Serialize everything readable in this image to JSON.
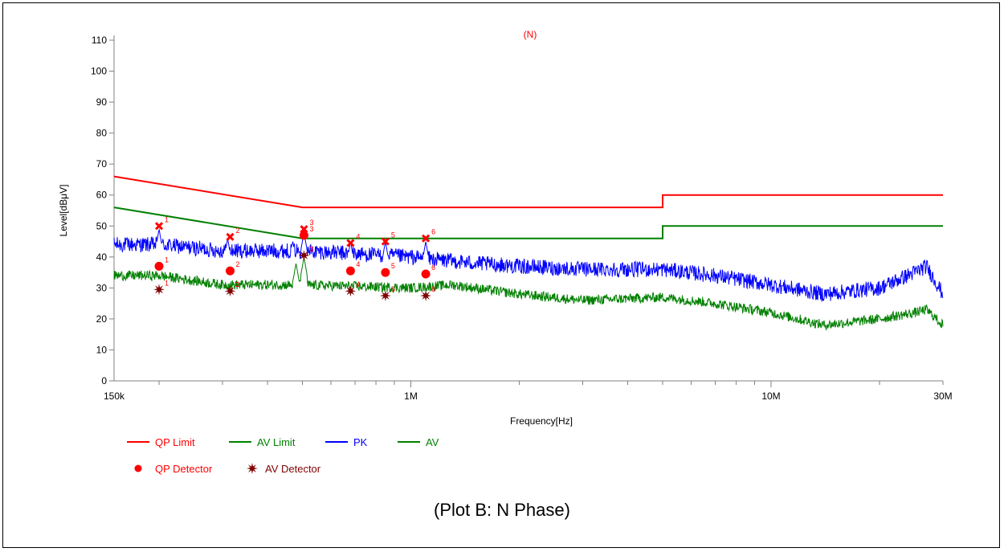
{
  "caption": "(Plot B: N Phase)",
  "colors": {
    "qp_limit": "#ff0000",
    "av_limit": "#008000",
    "pk": "#0000ff",
    "av": "#008000",
    "qp_detector": "#ff0000",
    "av_detector": "#800000",
    "peak_marker": "#ff0000",
    "marker_label": "#ff0000"
  },
  "chart_data": {
    "type": "line",
    "title": "(N)",
    "xlabel": "Frequency[Hz]",
    "ylabel": "Level[dBμV]",
    "xscale": "log",
    "xlim": [
      150000,
      30000000
    ],
    "ylim": [
      0,
      110
    ],
    "grid": false,
    "legend_position": "bottom-left",
    "x_ticks": [
      {
        "value": 150000,
        "label": "150k"
      },
      {
        "value": 1000000,
        "label": "1M"
      },
      {
        "value": 10000000,
        "label": "10M"
      },
      {
        "value": 30000000,
        "label": "30M"
      }
    ],
    "y_ticks": [
      0,
      10,
      20,
      30,
      40,
      50,
      60,
      70,
      80,
      90,
      100,
      110
    ],
    "series": [
      {
        "name": "QP Limit",
        "key": "qp_limit",
        "style": "line",
        "points": [
          [
            150000,
            66
          ],
          [
            500000,
            56
          ],
          [
            5000000,
            56
          ],
          [
            5000000,
            60
          ],
          [
            30000000,
            60
          ]
        ]
      },
      {
        "name": "AV Limit",
        "key": "av_limit",
        "style": "line",
        "points": [
          [
            150000,
            56
          ],
          [
            500000,
            46
          ],
          [
            5000000,
            46
          ],
          [
            5000000,
            50
          ],
          [
            30000000,
            50
          ]
        ]
      },
      {
        "name": "PK",
        "key": "pk",
        "style": "noisy",
        "envelope": [
          [
            150000,
            44
          ],
          [
            200000,
            44
          ],
          [
            300000,
            42
          ],
          [
            500000,
            42
          ],
          [
            1000000,
            40
          ],
          [
            1500000,
            38
          ],
          [
            2000000,
            37
          ],
          [
            3000000,
            36
          ],
          [
            5000000,
            36
          ],
          [
            7000000,
            34
          ],
          [
            10000000,
            31
          ],
          [
            14000000,
            28
          ],
          [
            20000000,
            30
          ],
          [
            25000000,
            35
          ],
          [
            27000000,
            37
          ],
          [
            30000000,
            28
          ]
        ],
        "spikes": [
          [
            200000,
            49
          ],
          [
            310000,
            46
          ],
          [
            470000,
            45
          ],
          [
            505000,
            48
          ],
          [
            680000,
            45
          ],
          [
            850000,
            45
          ],
          [
            1100000,
            45
          ]
        ],
        "noise": 2.5
      },
      {
        "name": "AV",
        "key": "av",
        "style": "noisy",
        "envelope": [
          [
            150000,
            34
          ],
          [
            200000,
            34
          ],
          [
            300000,
            31
          ],
          [
            500000,
            31
          ],
          [
            1000000,
            30
          ],
          [
            1300000,
            31
          ],
          [
            1500000,
            30
          ],
          [
            2000000,
            28
          ],
          [
            3000000,
            26
          ],
          [
            5000000,
            27
          ],
          [
            7000000,
            25
          ],
          [
            10000000,
            22
          ],
          [
            14000000,
            18
          ],
          [
            20000000,
            20
          ],
          [
            25000000,
            22
          ],
          [
            27000000,
            23
          ],
          [
            30000000,
            18
          ]
        ],
        "spikes": [
          [
            480000,
            38
          ],
          [
            505000,
            40
          ]
        ],
        "noise": 1.6
      },
      {
        "name": "QP Detector",
        "key": "qp_detector",
        "style": "dot",
        "points": [
          [
            200000,
            37,
            "1"
          ],
          [
            315000,
            35.5,
            "2"
          ],
          [
            505000,
            47,
            "3"
          ],
          [
            680000,
            35.5,
            "4"
          ],
          [
            850000,
            35,
            "5"
          ],
          [
            1100000,
            34.5,
            "6"
          ]
        ]
      },
      {
        "name": "AV Detector",
        "key": "av_detector",
        "style": "star",
        "points": [
          [
            200000,
            29.5,
            "1"
          ],
          [
            315000,
            29,
            "2"
          ],
          [
            505000,
            40.5,
            "3"
          ],
          [
            680000,
            29,
            "4"
          ],
          [
            850000,
            27.5,
            "5"
          ],
          [
            1100000,
            27.5,
            "6"
          ]
        ]
      }
    ],
    "peak_markers": [
      [
        200000,
        50,
        "1"
      ],
      [
        315000,
        46.5,
        "2"
      ],
      [
        505000,
        49,
        "3"
      ],
      [
        680000,
        44.5,
        "4"
      ],
      [
        850000,
        45,
        "5"
      ],
      [
        1100000,
        46,
        "6"
      ]
    ],
    "legend": [
      {
        "label": "QP Limit",
        "key": "qp_limit",
        "symbol": "line"
      },
      {
        "label": "AV Limit",
        "key": "av_limit",
        "symbol": "line"
      },
      {
        "label": "PK",
        "key": "pk",
        "symbol": "line"
      },
      {
        "label": "AV",
        "key": "av",
        "symbol": "line"
      },
      {
        "label": "QP Detector",
        "key": "qp_detector",
        "symbol": "dot"
      },
      {
        "label": "AV Detector",
        "key": "av_detector",
        "symbol": "star"
      }
    ]
  }
}
